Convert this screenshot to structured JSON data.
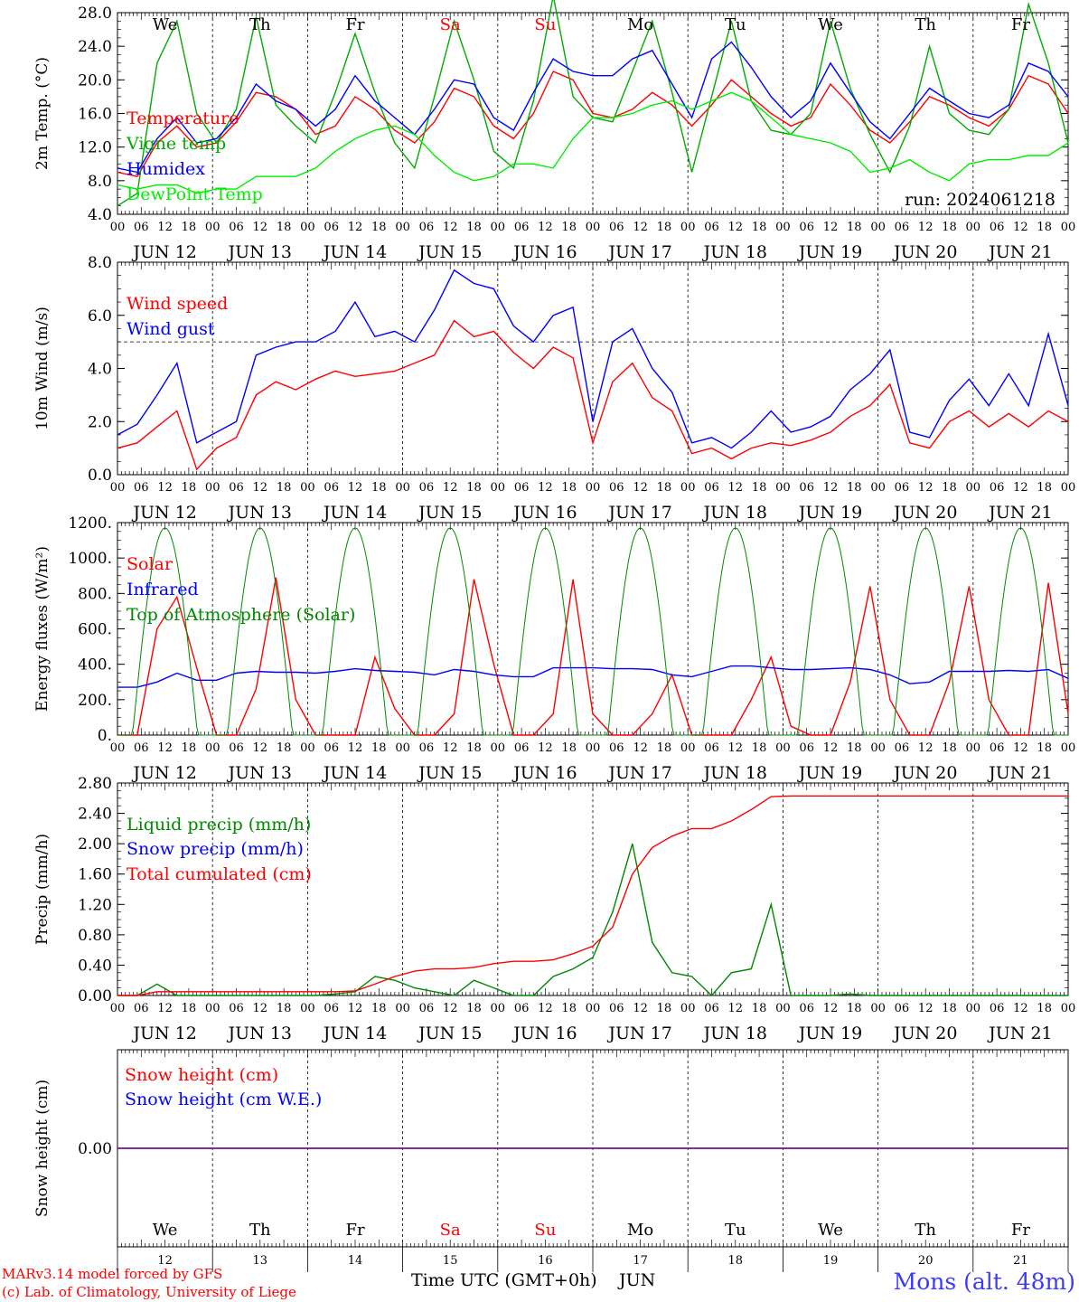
{
  "days": [
    {
      "name": "We",
      "color": "#000000"
    },
    {
      "name": "Th",
      "color": "#000000"
    },
    {
      "name": "Fr",
      "color": "#000000"
    },
    {
      "name": "Sa",
      "color": "#ff0000"
    },
    {
      "name": "Su",
      "color": "#ff0000"
    },
    {
      "name": "Mo",
      "color": "#000000"
    },
    {
      "name": "Tu",
      "color": "#000000"
    },
    {
      "name": "We",
      "color": "#000000"
    },
    {
      "name": "Th",
      "color": "#000000"
    },
    {
      "name": "Fr",
      "color": "#000000"
    }
  ],
  "date_labels": [
    "JUN 12",
    "JUN 13",
    "JUN 14",
    "JUN 15",
    "JUN 16",
    "JUN 17",
    "JUN 18",
    "JUN 19",
    "JUN 20",
    "JUN 21"
  ],
  "hour_labels": [
    "00",
    "06",
    "12",
    "18"
  ],
  "hour_end_label": "00",
  "bottom_day_numbers": [
    "12",
    "13",
    "14",
    "15",
    "16",
    "17",
    "18",
    "19",
    "20",
    "21"
  ],
  "footer": {
    "model": "MARv3.14 model forced by GFS",
    "copyright": "(c) Lab. of Climatology, University of Liege",
    "xlabel": "Time UTC (GMT+0h)",
    "month": "JUN",
    "station": "Mons (alt. 48m)"
  },
  "chart_data": [
    {
      "type": "line",
      "ylabel": "2m Temp. (°C)",
      "ylim": [
        4.0,
        28.0
      ],
      "yticks": [
        "4.0",
        "8.0",
        "12.0",
        "16.0",
        "20.0",
        "24.0",
        "28.0"
      ],
      "annotation": "run: 2024061218",
      "series": [
        {
          "name": "Temperature",
          "color": "#ff0000",
          "values": [
            9.0,
            8.5,
            12.5,
            14.5,
            12.0,
            12.5,
            15.0,
            18.5,
            18.0,
            16.5,
            13.5,
            14.5,
            18.0,
            16.5,
            14.0,
            12.5,
            15.0,
            19.0,
            18.0,
            14.5,
            13.0,
            16.0,
            21.0,
            20.0,
            16.0,
            15.5,
            16.5,
            18.5,
            17.0,
            14.5,
            17.0,
            20.0,
            18.0,
            16.0,
            14.5,
            15.5,
            19.5,
            17.0,
            14.0,
            12.5,
            15.0,
            18.0,
            17.0,
            15.5,
            14.5,
            16.5,
            20.5,
            19.5,
            16.0
          ]
        },
        {
          "name": "Vigne temp",
          "color": "#00aa00",
          "values": [
            5.0,
            6.5,
            22.0,
            27.0,
            16.0,
            12.5,
            16.5,
            27.5,
            17.0,
            14.5,
            12.5,
            18.5,
            25.5,
            18.5,
            12.5,
            9.5,
            18.0,
            27.0,
            20.0,
            11.5,
            9.5,
            17.5,
            30.0,
            18.0,
            15.5,
            15.0,
            21.0,
            27.0,
            18.5,
            9.0,
            18.0,
            27.0,
            17.5,
            14.0,
            13.5,
            16.0,
            27.0,
            19.0,
            13.5,
            9.0,
            14.5,
            24.0,
            16.0,
            14.0,
            13.5,
            16.5,
            29.0,
            22.0,
            12.5
          ]
        },
        {
          "name": "Humidex",
          "color": "#0000ff",
          "values": [
            9.5,
            9.0,
            13.0,
            15.5,
            12.5,
            13.0,
            15.5,
            19.5,
            17.5,
            16.5,
            14.5,
            16.5,
            20.5,
            17.5,
            15.5,
            13.5,
            16.5,
            20.0,
            19.5,
            15.5,
            14.0,
            18.5,
            22.5,
            21.0,
            20.5,
            20.5,
            22.5,
            23.5,
            19.5,
            15.5,
            22.5,
            24.5,
            21.5,
            18.0,
            15.5,
            17.5,
            22.0,
            18.5,
            15.0,
            13.0,
            16.0,
            19.0,
            17.5,
            16.0,
            15.5,
            17.0,
            22.0,
            21.0,
            18.0
          ]
        },
        {
          "name": "DewPoint Temp",
          "color": "#00ee00",
          "values": [
            7.5,
            7.0,
            7.5,
            7.5,
            6.5,
            7.0,
            7.0,
            8.5,
            8.5,
            8.5,
            9.5,
            11.5,
            13.0,
            14.0,
            14.5,
            13.5,
            11.0,
            9.0,
            8.0,
            8.5,
            10.0,
            10.0,
            9.5,
            13.0,
            15.5,
            15.5,
            16.0,
            17.0,
            17.5,
            16.5,
            17.5,
            18.5,
            17.5,
            15.5,
            13.5,
            13.0,
            12.5,
            11.5,
            9.0,
            9.5,
            10.5,
            9.0,
            8.0,
            10.0,
            10.5,
            10.5,
            11.0,
            11.0,
            12.5
          ]
        }
      ]
    },
    {
      "type": "line",
      "ylabel": "10m Wind (m/s)",
      "ylim": [
        0.0,
        8.0
      ],
      "yticks": [
        "0.0",
        "2.0",
        "4.0",
        "6.0",
        "8.0"
      ],
      "reference_line": 5.0,
      "series": [
        {
          "name": "Wind speed",
          "color": "#ff0000",
          "values": [
            1.0,
            1.2,
            1.8,
            2.4,
            0.2,
            1.0,
            1.4,
            3.0,
            3.5,
            3.2,
            3.6,
            3.9,
            3.7,
            3.8,
            3.9,
            4.2,
            4.5,
            5.8,
            5.2,
            5.4,
            4.6,
            4.0,
            4.8,
            4.4,
            1.2,
            3.5,
            4.2,
            2.9,
            2.4,
            0.8,
            1.0,
            0.6,
            1.0,
            1.2,
            1.1,
            1.3,
            1.6,
            2.2,
            2.6,
            3.4,
            1.2,
            1.0,
            2.0,
            2.4,
            1.8,
            2.3,
            1.8,
            2.4,
            2.0
          ]
        },
        {
          "name": "Wind gust",
          "color": "#0000ff",
          "values": [
            1.5,
            1.9,
            3.0,
            4.2,
            1.2,
            1.6,
            2.0,
            4.5,
            4.8,
            5.0,
            5.0,
            5.4,
            6.5,
            5.2,
            5.4,
            5.0,
            6.2,
            7.7,
            7.2,
            7.0,
            5.6,
            5.0,
            6.0,
            6.3,
            2.0,
            5.0,
            5.5,
            4.0,
            3.1,
            1.2,
            1.4,
            1.0,
            1.6,
            2.4,
            1.6,
            1.8,
            2.2,
            3.2,
            3.8,
            4.7,
            1.6,
            1.4,
            2.8,
            3.6,
            2.6,
            3.8,
            2.6,
            5.3,
            2.6
          ]
        }
      ]
    },
    {
      "type": "line",
      "ylabel": "Energy fluxes (W/m²)",
      "ylim": [
        0,
        1200
      ],
      "yticks": [
        "0.",
        "200.",
        "400.",
        "600.",
        "800.",
        "1000.",
        "1200."
      ],
      "series": [
        {
          "name": "Solar",
          "color": "#ff0000",
          "values": [
            0,
            0,
            600,
            780,
            380,
            0,
            0,
            260,
            890,
            200,
            0,
            0,
            0,
            440,
            150,
            0,
            0,
            120,
            880,
            400,
            0,
            0,
            120,
            880,
            120,
            0,
            0,
            120,
            340,
            0,
            0,
            0,
            200,
            440,
            50,
            0,
            0,
            300,
            840,
            200,
            0,
            0,
            300,
            840,
            200,
            0,
            0,
            860,
            120
          ]
        },
        {
          "name": "Infrared",
          "color": "#0000ff",
          "values": [
            270,
            270,
            300,
            350,
            310,
            310,
            350,
            360,
            355,
            355,
            350,
            360,
            375,
            365,
            360,
            355,
            340,
            370,
            360,
            340,
            330,
            330,
            380,
            380,
            380,
            375,
            375,
            370,
            340,
            330,
            360,
            390,
            390,
            380,
            370,
            370,
            375,
            380,
            370,
            340,
            290,
            300,
            360,
            360,
            360,
            365,
            360,
            370,
            320
          ]
        },
        {
          "name": "Top of Atmosphere (Solar)",
          "color": "#008800",
          "daily_peak": 1170
        }
      ]
    },
    {
      "type": "line",
      "ylabel": "Precip (mm/h)",
      "ylim": [
        0.0,
        2.8
      ],
      "yticks": [
        "0.00",
        "0.40",
        "0.80",
        "1.20",
        "1.60",
        "2.00",
        "2.40",
        "2.80"
      ],
      "series": [
        {
          "name": "Liquid precip (mm/h)",
          "color": "#008800",
          "values": [
            0,
            0,
            0.15,
            0,
            0,
            0,
            0,
            0,
            0,
            0,
            0,
            0.02,
            0.05,
            0.25,
            0.2,
            0.1,
            0.05,
            0,
            0.2,
            0.1,
            0,
            0,
            0.25,
            0.35,
            0.5,
            1.1,
            2.0,
            0.7,
            0.3,
            0.25,
            0,
            0.3,
            0.35,
            1.2,
            0,
            0,
            0,
            0.02,
            0,
            0,
            0,
            0,
            0,
            0,
            0,
            0,
            0,
            0,
            0
          ]
        },
        {
          "name": "Snow precip (mm/h)",
          "color": "#0000ff",
          "values": []
        },
        {
          "name": "Total cumulated (cm)",
          "color": "#ff0000",
          "values": [
            0,
            0,
            0.05,
            0.05,
            0.05,
            0.05,
            0.05,
            0.05,
            0.05,
            0.05,
            0.05,
            0.05,
            0.06,
            0.15,
            0.25,
            0.32,
            0.35,
            0.35,
            0.37,
            0.42,
            0.45,
            0.45,
            0.47,
            0.55,
            0.65,
            0.9,
            1.6,
            1.95,
            2.1,
            2.2,
            2.2,
            2.3,
            2.45,
            2.62,
            2.63,
            2.63,
            2.63,
            2.63,
            2.63,
            2.63,
            2.63,
            2.63,
            2.63,
            2.63,
            2.63,
            2.63,
            2.63,
            2.63,
            2.63
          ]
        }
      ]
    },
    {
      "type": "line",
      "ylabel": "Snow height (cm)",
      "ylim": [
        -1.0,
        1.0
      ],
      "yticks": [
        "0.00"
      ],
      "series": [
        {
          "name": "Snow height (cm)",
          "color": "#ff0000",
          "values": [
            0,
            0
          ]
        },
        {
          "name": "Snow height (cm W.E.)",
          "color": "#0000ff",
          "values": [
            0,
            0
          ]
        }
      ]
    }
  ]
}
